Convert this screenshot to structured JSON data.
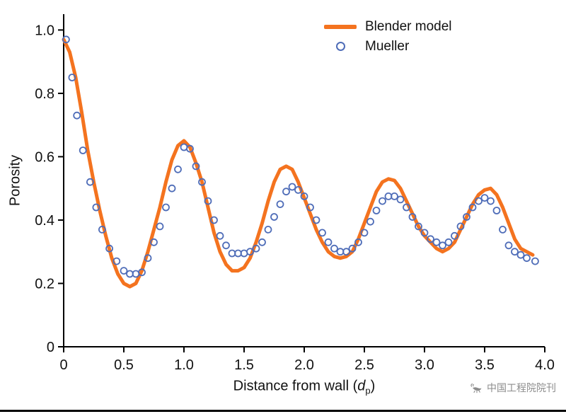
{
  "chart_data": {
    "type": "line",
    "title": "",
    "xlabel": "Distance from wall (d_p)",
    "xlabel_parts": {
      "prefix": "Distance from wall (",
      "var": "d",
      "sub": "p",
      "suffix": ")"
    },
    "ylabel": "Porosity",
    "xlim": [
      0,
      4.0
    ],
    "ylim": [
      0,
      1.05
    ],
    "grid": false,
    "legend_position": "top-center-inside",
    "xtick_values": [
      0,
      0.5,
      1.0,
      1.5,
      2.0,
      2.5,
      3.0,
      3.5,
      4.0
    ],
    "xtick_labels": [
      "0",
      "0.5",
      "1.0",
      "1.5",
      "2.0",
      "2.5",
      "3.0",
      "3.5",
      "4.0"
    ],
    "ytick_values": [
      0,
      0.2,
      0.4,
      0.6,
      0.8,
      1.0
    ],
    "ytick_labels": [
      "0",
      "0.2",
      "0.4",
      "0.6",
      "0.8",
      "1.0"
    ],
    "series": [
      {
        "name": "Blender model",
        "type": "line",
        "color": "#f4731f",
        "points": [
          [
            0.0,
            0.97
          ],
          [
            0.05,
            0.93
          ],
          [
            0.1,
            0.85
          ],
          [
            0.15,
            0.74
          ],
          [
            0.2,
            0.62
          ],
          [
            0.25,
            0.52
          ],
          [
            0.3,
            0.43
          ],
          [
            0.35,
            0.35
          ],
          [
            0.4,
            0.28
          ],
          [
            0.45,
            0.23
          ],
          [
            0.5,
            0.2
          ],
          [
            0.55,
            0.19
          ],
          [
            0.6,
            0.2
          ],
          [
            0.65,
            0.24
          ],
          [
            0.7,
            0.3
          ],
          [
            0.75,
            0.37
          ],
          [
            0.8,
            0.44
          ],
          [
            0.85,
            0.52
          ],
          [
            0.9,
            0.59
          ],
          [
            0.95,
            0.635
          ],
          [
            1.0,
            0.65
          ],
          [
            1.05,
            0.63
          ],
          [
            1.1,
            0.58
          ],
          [
            1.15,
            0.52
          ],
          [
            1.2,
            0.44
          ],
          [
            1.25,
            0.36
          ],
          [
            1.3,
            0.3
          ],
          [
            1.35,
            0.26
          ],
          [
            1.4,
            0.24
          ],
          [
            1.45,
            0.24
          ],
          [
            1.5,
            0.25
          ],
          [
            1.55,
            0.28
          ],
          [
            1.6,
            0.33
          ],
          [
            1.65,
            0.39
          ],
          [
            1.7,
            0.46
          ],
          [
            1.75,
            0.52
          ],
          [
            1.8,
            0.56
          ],
          [
            1.85,
            0.57
          ],
          [
            1.9,
            0.56
          ],
          [
            1.95,
            0.52
          ],
          [
            2.0,
            0.47
          ],
          [
            2.05,
            0.42
          ],
          [
            2.1,
            0.37
          ],
          [
            2.15,
            0.33
          ],
          [
            2.2,
            0.3
          ],
          [
            2.25,
            0.285
          ],
          [
            2.3,
            0.28
          ],
          [
            2.35,
            0.285
          ],
          [
            2.4,
            0.3
          ],
          [
            2.45,
            0.34
          ],
          [
            2.5,
            0.39
          ],
          [
            2.55,
            0.44
          ],
          [
            2.6,
            0.49
          ],
          [
            2.65,
            0.52
          ],
          [
            2.7,
            0.53
          ],
          [
            2.75,
            0.525
          ],
          [
            2.8,
            0.5
          ],
          [
            2.85,
            0.46
          ],
          [
            2.9,
            0.42
          ],
          [
            2.95,
            0.38
          ],
          [
            3.0,
            0.35
          ],
          [
            3.05,
            0.33
          ],
          [
            3.1,
            0.31
          ],
          [
            3.15,
            0.3
          ],
          [
            3.2,
            0.31
          ],
          [
            3.25,
            0.33
          ],
          [
            3.3,
            0.37
          ],
          [
            3.35,
            0.41
          ],
          [
            3.4,
            0.45
          ],
          [
            3.45,
            0.48
          ],
          [
            3.5,
            0.495
          ],
          [
            3.55,
            0.5
          ],
          [
            3.6,
            0.48
          ],
          [
            3.65,
            0.44
          ],
          [
            3.7,
            0.39
          ],
          [
            3.75,
            0.34
          ],
          [
            3.8,
            0.31
          ],
          [
            3.85,
            0.3
          ],
          [
            3.9,
            0.29
          ]
        ]
      },
      {
        "name": "Mueller",
        "type": "scatter",
        "color": "#4f6db8",
        "marker": "open-circle",
        "points": [
          [
            0.02,
            0.97
          ],
          [
            0.07,
            0.85
          ],
          [
            0.11,
            0.73
          ],
          [
            0.16,
            0.62
          ],
          [
            0.22,
            0.52
          ],
          [
            0.27,
            0.44
          ],
          [
            0.32,
            0.37
          ],
          [
            0.38,
            0.31
          ],
          [
            0.44,
            0.27
          ],
          [
            0.5,
            0.24
          ],
          [
            0.55,
            0.23
          ],
          [
            0.6,
            0.23
          ],
          [
            0.65,
            0.235
          ],
          [
            0.7,
            0.28
          ],
          [
            0.75,
            0.33
          ],
          [
            0.8,
            0.38
          ],
          [
            0.85,
            0.44
          ],
          [
            0.9,
            0.5
          ],
          [
            0.95,
            0.56
          ],
          [
            1.0,
            0.63
          ],
          [
            1.05,
            0.625
          ],
          [
            1.1,
            0.57
          ],
          [
            1.15,
            0.52
          ],
          [
            1.2,
            0.46
          ],
          [
            1.25,
            0.4
          ],
          [
            1.3,
            0.35
          ],
          [
            1.35,
            0.32
          ],
          [
            1.4,
            0.295
          ],
          [
            1.45,
            0.295
          ],
          [
            1.5,
            0.295
          ],
          [
            1.55,
            0.3
          ],
          [
            1.6,
            0.31
          ],
          [
            1.65,
            0.33
          ],
          [
            1.7,
            0.37
          ],
          [
            1.75,
            0.41
          ],
          [
            1.8,
            0.45
          ],
          [
            1.85,
            0.49
          ],
          [
            1.9,
            0.505
          ],
          [
            1.95,
            0.495
          ],
          [
            2.0,
            0.475
          ],
          [
            2.05,
            0.44
          ],
          [
            2.1,
            0.4
          ],
          [
            2.15,
            0.36
          ],
          [
            2.2,
            0.33
          ],
          [
            2.25,
            0.31
          ],
          [
            2.3,
            0.3
          ],
          [
            2.35,
            0.3
          ],
          [
            2.4,
            0.31
          ],
          [
            2.45,
            0.33
          ],
          [
            2.5,
            0.36
          ],
          [
            2.55,
            0.395
          ],
          [
            2.6,
            0.43
          ],
          [
            2.65,
            0.46
          ],
          [
            2.7,
            0.475
          ],
          [
            2.75,
            0.475
          ],
          [
            2.8,
            0.465
          ],
          [
            2.85,
            0.44
          ],
          [
            2.9,
            0.41
          ],
          [
            2.95,
            0.38
          ],
          [
            3.0,
            0.36
          ],
          [
            3.05,
            0.34
          ],
          [
            3.1,
            0.33
          ],
          [
            3.15,
            0.32
          ],
          [
            3.2,
            0.33
          ],
          [
            3.25,
            0.35
          ],
          [
            3.3,
            0.38
          ],
          [
            3.35,
            0.41
          ],
          [
            3.4,
            0.44
          ],
          [
            3.45,
            0.46
          ],
          [
            3.5,
            0.47
          ],
          [
            3.55,
            0.46
          ],
          [
            3.6,
            0.43
          ],
          [
            3.65,
            0.37
          ],
          [
            3.7,
            0.32
          ],
          [
            3.75,
            0.3
          ],
          [
            3.8,
            0.29
          ],
          [
            3.85,
            0.28
          ],
          [
            3.92,
            0.27
          ]
        ]
      }
    ]
  },
  "colors": {
    "axis": "#000000",
    "tick_text": "#111111",
    "line_series": "#f4731f",
    "scatter_series": "#4f6db8",
    "watermark": "#8c8c8c",
    "bottom_rule": "#000000"
  },
  "watermark": {
    "text": "中国工程院院刊"
  }
}
